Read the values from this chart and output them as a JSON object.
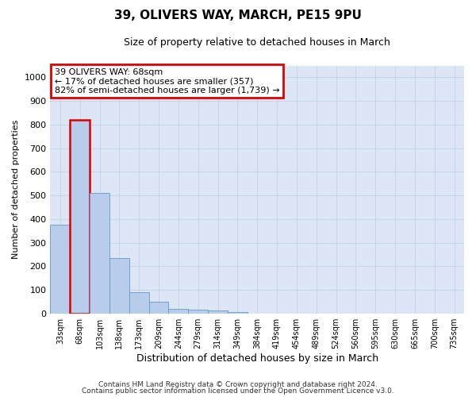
{
  "title": "39, OLIVERS WAY, MARCH, PE15 9PU",
  "subtitle": "Size of property relative to detached houses in March",
  "xlabel": "Distribution of detached houses by size in March",
  "ylabel": "Number of detached properties",
  "footer_line1": "Contains HM Land Registry data © Crown copyright and database right 2024.",
  "footer_line2": "Contains public sector information licensed under the Open Government Licence v3.0.",
  "annotation_line1": "39 OLIVERS WAY: 68sqm",
  "annotation_line2": "← 17% of detached houses are smaller (357)",
  "annotation_line3": "82% of semi-detached houses are larger (1,739) →",
  "bar_color": "#b8cceb",
  "bar_edge_color": "#6699cc",
  "highlight_bar_edge_color": "#dd0000",
  "highlight_bar_color": "#b8cceb",
  "annotation_box_edge_color": "#dd0000",
  "categories": [
    "33sqm",
    "68sqm",
    "103sqm",
    "138sqm",
    "173sqm",
    "209sqm",
    "244sqm",
    "279sqm",
    "314sqm",
    "349sqm",
    "384sqm",
    "419sqm",
    "454sqm",
    "489sqm",
    "524sqm",
    "560sqm",
    "595sqm",
    "630sqm",
    "665sqm",
    "700sqm",
    "735sqm"
  ],
  "values": [
    375,
    820,
    510,
    235,
    90,
    48,
    18,
    15,
    11,
    5,
    0,
    0,
    0,
    0,
    0,
    0,
    0,
    0,
    0,
    0,
    0
  ],
  "highlight_index": 1,
  "ylim": [
    0,
    1050
  ],
  "yticks": [
    0,
    100,
    200,
    300,
    400,
    500,
    600,
    700,
    800,
    900,
    1000
  ],
  "grid_color": "#c8d4e8",
  "background_color": "#dde6f5",
  "title_fontsize": 11,
  "subtitle_fontsize": 9,
  "ylabel_fontsize": 8,
  "xlabel_fontsize": 9,
  "tick_fontsize": 8,
  "xtick_fontsize": 7,
  "annotation_fontsize": 8,
  "footer_fontsize": 6.5
}
